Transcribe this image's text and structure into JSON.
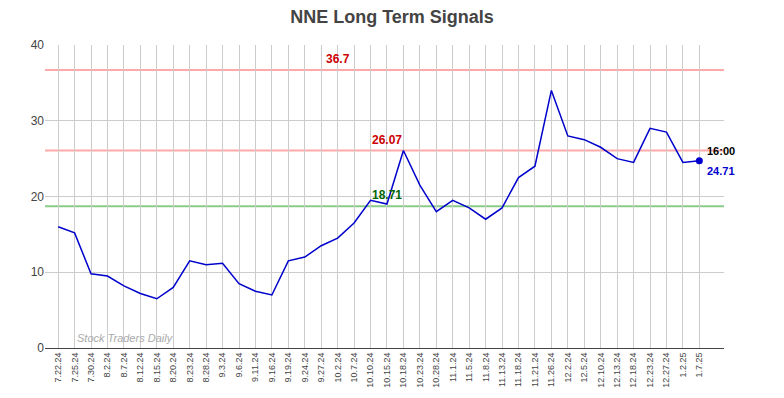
{
  "chart_data": {
    "type": "line",
    "title": "NNE Long Term Signals",
    "categories": [
      "7.22.24",
      "7.25.24",
      "7.30.24",
      "8.2.24",
      "8.7.24",
      "8.12.24",
      "8.15.24",
      "8.20.24",
      "8.23.24",
      "8.28.24",
      "9.3.24",
      "9.6.24",
      "9.11.24",
      "9.16.24",
      "9.19.24",
      "9.24.24",
      "9.27.24",
      "10.2.24",
      "10.7.24",
      "10.10.24",
      "10.15.24",
      "10.18.24",
      "10.23.24",
      "10.28.24",
      "11.1.24",
      "11.5.24",
      "11.8.24",
      "11.13.24",
      "11.18.24",
      "11.21.24",
      "11.26.24",
      "12.2.24",
      "12.5.24",
      "12.10.24",
      "12.13.24",
      "12.18.24",
      "12.23.24",
      "12.27.24",
      "1.2.25",
      "1.7.25"
    ],
    "values": [
      16.0,
      15.2,
      9.8,
      9.5,
      8.2,
      7.2,
      6.5,
      8.0,
      11.5,
      11.0,
      11.2,
      8.5,
      7.5,
      7.0,
      11.5,
      12.0,
      13.5,
      14.5,
      16.5,
      19.5,
      19.0,
      26.07,
      21.5,
      18.0,
      19.5,
      18.5,
      17.0,
      18.5,
      22.5,
      24.0,
      34.0,
      28.0,
      27.5,
      26.5,
      25.0,
      24.5,
      29.0,
      28.5,
      24.5,
      24.71
    ],
    "color": "#0000cc",
    "ylim": [
      0,
      40
    ],
    "yticks": [
      0,
      10,
      20,
      30,
      40
    ],
    "grid": true,
    "hlines": [
      {
        "value": 36.7,
        "label": "36.7",
        "color": "#ffaaaa",
        "label_color": "#cc0000",
        "label_category": "10.2.24"
      },
      {
        "value": 26.07,
        "label": "26.07",
        "color": "#ffaaaa",
        "label_color": "#cc0000",
        "label_category": "10.15.24"
      },
      {
        "value": 18.71,
        "label": "18.71",
        "color": "#88cc88",
        "label_color": "#006600",
        "label_category": "10.15.24"
      }
    ],
    "end_labels": [
      {
        "text": "16:00",
        "color": "#000000"
      },
      {
        "text": "24.71",
        "color": "#0000cc"
      }
    ],
    "watermark": {
      "text": "Stock Traders Daily",
      "color": "#aaaaaa"
    }
  }
}
